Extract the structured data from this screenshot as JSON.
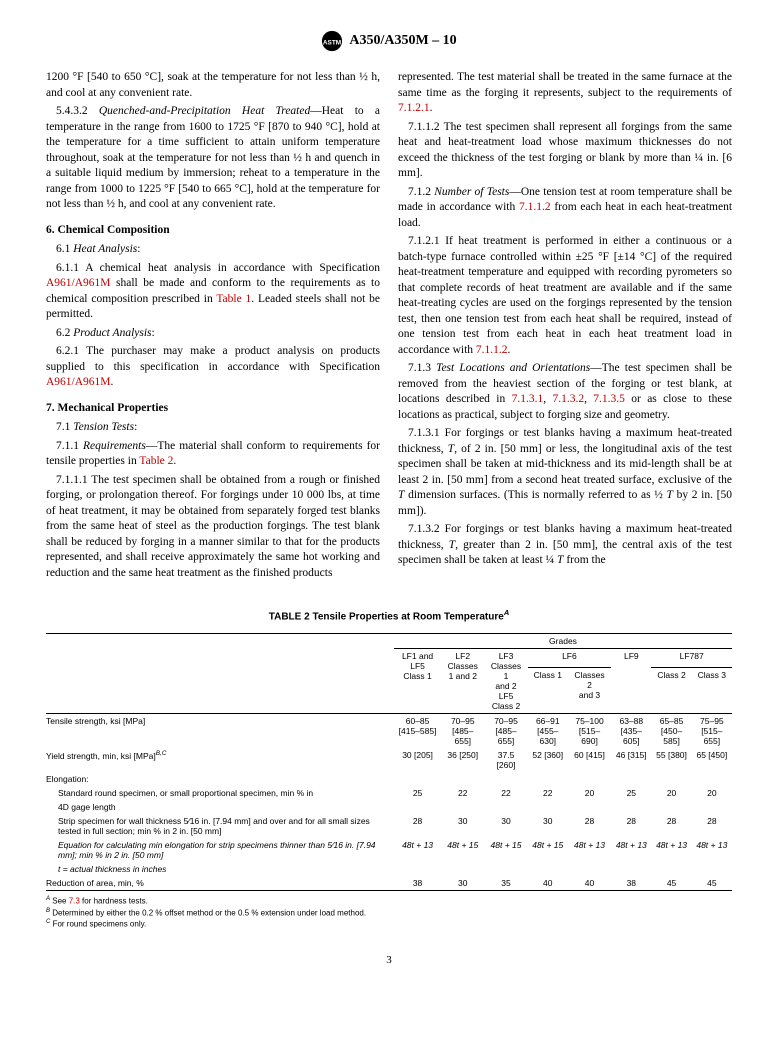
{
  "header": {
    "designation": "A350/A350M – 10"
  },
  "left": {
    "p1": "1200 °F [540 to 650 °C], soak at the temperature for not less than ½ h, and cool at any convenient rate.",
    "p2_label": "5.4.3.2",
    "p2_title": "Quenched-and-Precipitation Heat Treated",
    "p2_body": "—Heat to a temperature in the range from 1600 to 1725 °F [870 to 940 °C], hold at the temperature for a time sufficient to attain uniform temperature throughout, soak at the temperature for not less than ½ h and quench in a suitable liquid medium by immersion; reheat to a temperature in the range from 1000 to 1225 °F [540 to 665 °C], hold at the temperature for not less than ½ h, and cool at any convenient rate.",
    "s6": "6.  Chemical Composition",
    "p61_label": "6.1",
    "p61_title": "Heat Analysis",
    "p611_label": "6.1.1",
    "p611_a": "A chemical heat analysis in accordance with Specification ",
    "p611_ref": "A961/A961M",
    "p611_b": " shall be made and conform to the requirements as to chemical composition prescribed in ",
    "p611_ref2": "Table 1",
    "p611_c": ". Leaded steels shall not be permitted.",
    "p62_label": "6.2",
    "p62_title": "Product Analysis",
    "p621_label": "6.2.1",
    "p621_a": "The purchaser may make a product analysis on products supplied to this specification in accordance with Specification ",
    "p621_ref": "A961/A961M",
    "p621_b": ".",
    "s7": "7.  Mechanical Properties",
    "p71_label": "7.1",
    "p71_title": "Tension Tests",
    "p711_label": "7.1.1",
    "p711_title": "Requirements",
    "p711_a": "—The material shall conform to requirements for tensile properties in ",
    "p711_ref": "Table 2",
    "p711_b": ".",
    "p7111_label": "7.1.1.1",
    "p7111_body": "The test specimen shall be obtained from a rough or finished forging, or prolongation thereof. For forgings under 10 000 lbs, at time of heat treatment, it may be obtained from separately forged test blanks from the same heat of steel as the production forgings. The test blank shall be reduced by forging in a manner similar to that for the products represented, and shall receive approximately the same hot working and reduction and the same heat treatment as the finished products"
  },
  "right": {
    "p7111_cont_a": "represented. The test material shall be treated in the same furnace at the same time as the forging it represents, subject to the requirements of ",
    "p7111_ref": "7.1.2.1",
    "p7111_b": ".",
    "p7112_label": "7.1.1.2",
    "p7112_body": "The test specimen shall represent all forgings from the same heat and heat-treatment load whose maximum thicknesses do not exceed the thickness of the test forging or blank by more than ¼ in. [6 mm].",
    "p712_label": "7.1.2",
    "p712_title": "Number of Tests",
    "p712_a": "—One tension test at room temperature shall be made in accordance with ",
    "p712_ref": "7.1.1.2",
    "p712_b": " from each heat in each heat-treatment load.",
    "p7121_label": "7.1.2.1",
    "p7121_a": "If heat treatment is performed in either a continuous or a batch-type furnace controlled within ±25 °F [±14 °C] of the required heat-treatment temperature and equipped with recording pyrometers so that complete records of heat treatment are available and if the same heat-treating cycles are used on the forgings represented by the tension test, then one tension test from each heat shall be required, instead of one tension test from each heat in each heat treatment load in accordance with ",
    "p7121_ref": "7.1.1.2",
    "p7121_b": ".",
    "p713_label": "7.1.3",
    "p713_title": "Test Locations and Orientations",
    "p713_a": "—The test specimen shall be removed from the heaviest section of the forging or test blank, at locations described in ",
    "p713_ref1": "7.1.3.1",
    "p713_ref2": "7.1.3.2",
    "p713_ref3": "7.1.3.5",
    "p713_b": " or as close to these locations as practical, subject to forging size and geometry.",
    "p7131_label": "7.1.3.1",
    "p7131_body": "For forgings or test blanks having a maximum heat-treated thickness, T, of 2 in. [50 mm] or less, the longitudinal axis of the test specimen shall be taken at mid-thickness and its mid-length shall be at least 2 in. [50 mm] from a second heat treated surface, exclusive of the T dimension surfaces. (This is normally referred to as ½ T by 2 in. [50 mm]).",
    "p7132_label": "7.1.3.2",
    "p7132_body": "For forgings or test blanks having a maximum heat-treated thickness, T, greater than 2 in. [50 mm], the central axis of the test specimen shall be taken at least ¼  T from the"
  },
  "table": {
    "title": "TABLE 2   Tensile Properties at Room Temperature",
    "title_sup": "A",
    "grades_label": "Grades",
    "headers": {
      "c1": "LF1 and LF5\nClass 1",
      "c2": "LF2\nClasses\n1 and 2",
      "c3": "LF3\nClasses 1\nand 2\nLF5\nClass 2",
      "lf6": "LF6",
      "lf6_c1": "Class 1",
      "lf6_c23": "Classes 2\nand 3",
      "c6": "LF9",
      "lf787": "LF787",
      "lf787_c2": "Class 2",
      "lf787_c3": "Class 3"
    },
    "rows": [
      {
        "label": "Tensile strength, ksi [MPa]",
        "indent": 0,
        "cells": [
          "60–85\n[415–585]",
          "70–95\n[485–655]",
          "70–95\n[485–655]",
          "66–91\n[455–630]",
          "75–100\n[515–690]",
          "63–88\n[435–605]",
          "65–85\n[450–585]",
          "75–95\n[515–655]"
        ]
      },
      {
        "label": "Yield strength, min, ksi [MPa]",
        "sup": "B,C",
        "indent": 0,
        "cells": [
          "30 [205]",
          "36 [250]",
          "37.5 [260]",
          "52 [360]",
          "60 [415]",
          "46 [315]",
          "55 [380]",
          "65 [450]"
        ]
      },
      {
        "label": "Elongation:",
        "indent": 0,
        "cells": [
          "",
          "",
          "",
          "",
          "",
          "",
          "",
          ""
        ]
      },
      {
        "label": "Standard round specimen, or small proportional specimen, min % in",
        "indent": 1,
        "cells": [
          "25",
          "22",
          "22",
          "22",
          "20",
          "25",
          "20",
          "20"
        ]
      },
      {
        "label": "4D gage length",
        "indent": 1,
        "cells": [
          "",
          "",
          "",
          "",
          "",
          "",
          "",
          ""
        ]
      },
      {
        "label": "Strip specimen for wall thickness 5⁄16 in. [7.94 mm] and over and for all small sizes tested in full section; min % in 2 in. [50 mm]",
        "indent": 1,
        "cells": [
          "28",
          "30",
          "30",
          "30",
          "28",
          "28",
          "28",
          "28"
        ]
      },
      {
        "label": "Equation for calculating min elongation for strip specimens thinner than 5⁄16 in. [7.94 mm]; min % in 2 in. [50 mm]",
        "indent": 1,
        "italic": true,
        "cells": [
          "48t + 13",
          "48t + 15",
          "48t + 15",
          "48t + 15",
          "48t + 13",
          "48t + 13",
          "48t + 13",
          "48t + 13"
        ]
      },
      {
        "label": "t = actual thickness in inches",
        "indent": 1,
        "italic": true,
        "cells": [
          "",
          "",
          "",
          "",
          "",
          "",
          "",
          ""
        ]
      },
      {
        "label": "Reduction of area, min, %",
        "indent": 0,
        "cells": [
          "38",
          "30",
          "35",
          "40",
          "40",
          "38",
          "45",
          "45"
        ]
      }
    ],
    "footnotes": {
      "A_a": " See ",
      "A_ref": "7.3",
      "A_b": " for hardness tests.",
      "B": " Determined by either the 0.2 % offset method or the 0.5 % extension under load method.",
      "C": " For round specimens only."
    }
  },
  "pagenum": "3"
}
